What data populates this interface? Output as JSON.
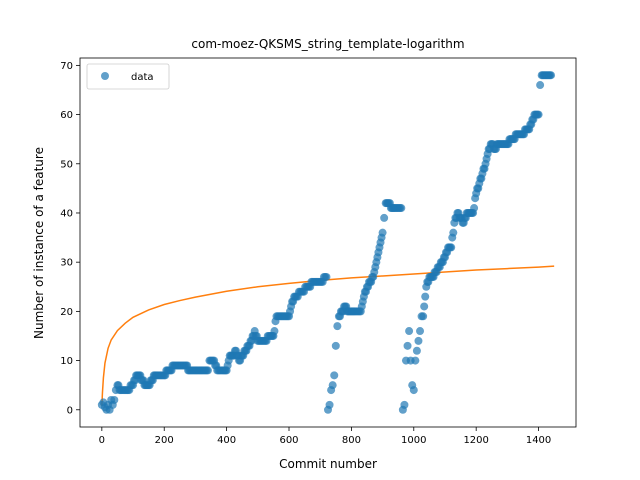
{
  "chart_data": {
    "type": "scatter",
    "title": "com-moez-QKSMS_string_template-logarithm",
    "xlabel": "Commit number",
    "ylabel": "Number of instance of a feature",
    "xlim": [
      -70,
      1520
    ],
    "ylim": [
      -3.5,
      71.5
    ],
    "xticks": [
      0,
      200,
      400,
      600,
      800,
      1000,
      1200,
      1400
    ],
    "yticks": [
      0,
      10,
      20,
      30,
      40,
      50,
      60,
      70
    ],
    "grid": false,
    "legend": {
      "placement": "top-left",
      "entries": [
        "data"
      ]
    },
    "colors": {
      "data": "#1f77b4",
      "fit": "#ff7f0e"
    },
    "series": [
      {
        "name": "data",
        "kind": "scatter",
        "segments": [
          [
            [
              0,
              1
            ],
            [
              5,
              1.5
            ],
            [
              10,
              0.5
            ],
            [
              15,
              0
            ],
            [
              20,
              1
            ],
            [
              25,
              0
            ],
            [
              30,
              2
            ],
            [
              35,
              1
            ],
            [
              40,
              2
            ],
            [
              45,
              4
            ],
            [
              50,
              5
            ],
            [
              60,
              4
            ],
            [
              80,
              4
            ],
            [
              100,
              5
            ],
            [
              110,
              7
            ],
            [
              120,
              7
            ],
            [
              130,
              6
            ],
            [
              140,
              5
            ],
            [
              150,
              5
            ],
            [
              160,
              6
            ],
            [
              170,
              7
            ],
            [
              180,
              7
            ],
            [
              200,
              7
            ],
            [
              210,
              8
            ],
            [
              220,
              8
            ],
            [
              230,
              9
            ],
            [
              250,
              9
            ],
            [
              270,
              9
            ],
            [
              280,
              8
            ],
            [
              300,
              8
            ],
            [
              320,
              8
            ],
            [
              340,
              8
            ],
            [
              345,
              10
            ],
            [
              360,
              10
            ],
            [
              370,
              8
            ],
            [
              390,
              8
            ],
            [
              400,
              8
            ],
            [
              410,
              11
            ],
            [
              420,
              11
            ],
            [
              430,
              12
            ],
            [
              440,
              10
            ],
            [
              450,
              11
            ],
            [
              460,
              12
            ],
            [
              470,
              13
            ],
            [
              480,
              14
            ],
            [
              490,
              16
            ],
            [
              500,
              14
            ],
            [
              520,
              14
            ],
            [
              540,
              15
            ],
            [
              550,
              15
            ],
            [
              560,
              19
            ],
            [
              580,
              19
            ],
            [
              600,
              19
            ],
            [
              610,
              22
            ],
            [
              620,
              23
            ],
            [
              640,
              24
            ],
            [
              660,
              25
            ],
            [
              680,
              26
            ],
            [
              700,
              26
            ],
            [
              720,
              27
            ]
          ],
          [
            [
              725,
              0
            ],
            [
              730,
              1
            ],
            [
              735,
              4
            ],
            [
              740,
              5
            ],
            [
              745,
              7
            ],
            [
              750,
              13
            ],
            [
              755,
              17
            ],
            [
              760,
              19
            ],
            [
              770,
              20
            ],
            [
              780,
              21
            ],
            [
              790,
              20
            ],
            [
              800,
              20
            ],
            [
              810,
              20
            ],
            [
              830,
              20
            ],
            [
              840,
              23
            ],
            [
              850,
              25
            ],
            [
              860,
              26
            ],
            [
              870,
              27
            ],
            [
              880,
              30
            ],
            [
              890,
              33
            ],
            [
              900,
              36
            ],
            [
              905,
              39
            ],
            [
              910,
              42
            ],
            [
              920,
              42
            ],
            [
              930,
              41
            ],
            [
              940,
              41
            ],
            [
              960,
              41
            ]
          ],
          [
            [
              965,
              0
            ],
            [
              970,
              1
            ],
            [
              975,
              10
            ],
            [
              980,
              13
            ],
            [
              985,
              16
            ],
            [
              990,
              10
            ],
            [
              995,
              5
            ],
            [
              1000,
              4
            ],
            [
              1005,
              10
            ],
            [
              1010,
              12
            ],
            [
              1015,
              14
            ],
            [
              1020,
              16
            ],
            [
              1025,
              19
            ],
            [
              1030,
              19
            ],
            [
              1040,
              25
            ],
            [
              1050,
              27
            ],
            [
              1060,
              27
            ],
            [
              1070,
              28
            ],
            [
              1080,
              29
            ],
            [
              1090,
              30
            ],
            [
              1100,
              31
            ],
            [
              1110,
              33
            ],
            [
              1120,
              33
            ],
            [
              1130,
              38
            ],
            [
              1140,
              40
            ],
            [
              1150,
              39
            ],
            [
              1160,
              38
            ],
            [
              1170,
              40
            ],
            [
              1180,
              40
            ],
            [
              1190,
              40
            ],
            [
              1200,
              44
            ],
            [
              1210,
              46
            ],
            [
              1220,
              48
            ],
            [
              1230,
              50
            ],
            [
              1240,
              53
            ],
            [
              1250,
              54
            ],
            [
              1260,
              53
            ],
            [
              1270,
              54
            ],
            [
              1280,
              54
            ],
            [
              1290,
              54
            ],
            [
              1300,
              54
            ],
            [
              1310,
              55
            ],
            [
              1320,
              55
            ],
            [
              1330,
              56
            ],
            [
              1340,
              56
            ],
            [
              1350,
              56
            ],
            [
              1360,
              57
            ],
            [
              1370,
              57
            ],
            [
              1380,
              59
            ],
            [
              1390,
              60
            ],
            [
              1400,
              60
            ],
            [
              1405,
              66
            ],
            [
              1410,
              68
            ],
            [
              1420,
              68
            ],
            [
              1430,
              68
            ],
            [
              1440,
              68
            ]
          ]
        ]
      },
      {
        "name": "",
        "kind": "line",
        "x": [
          0,
          2,
          5,
          10,
          20,
          30,
          50,
          75,
          100,
          150,
          200,
          250,
          300,
          400,
          500,
          600,
          700,
          800,
          900,
          1000,
          1100,
          1200,
          1300,
          1400,
          1450
        ],
        "y": [
          0.8,
          3.5,
          6.5,
          9.5,
          12.5,
          14.2,
          16.1,
          17.6,
          18.8,
          20.3,
          21.4,
          22.2,
          22.9,
          24.1,
          25.0,
          25.7,
          26.3,
          26.8,
          27.2,
          27.6,
          28.0,
          28.4,
          28.7,
          29.0,
          29.2
        ]
      }
    ]
  }
}
